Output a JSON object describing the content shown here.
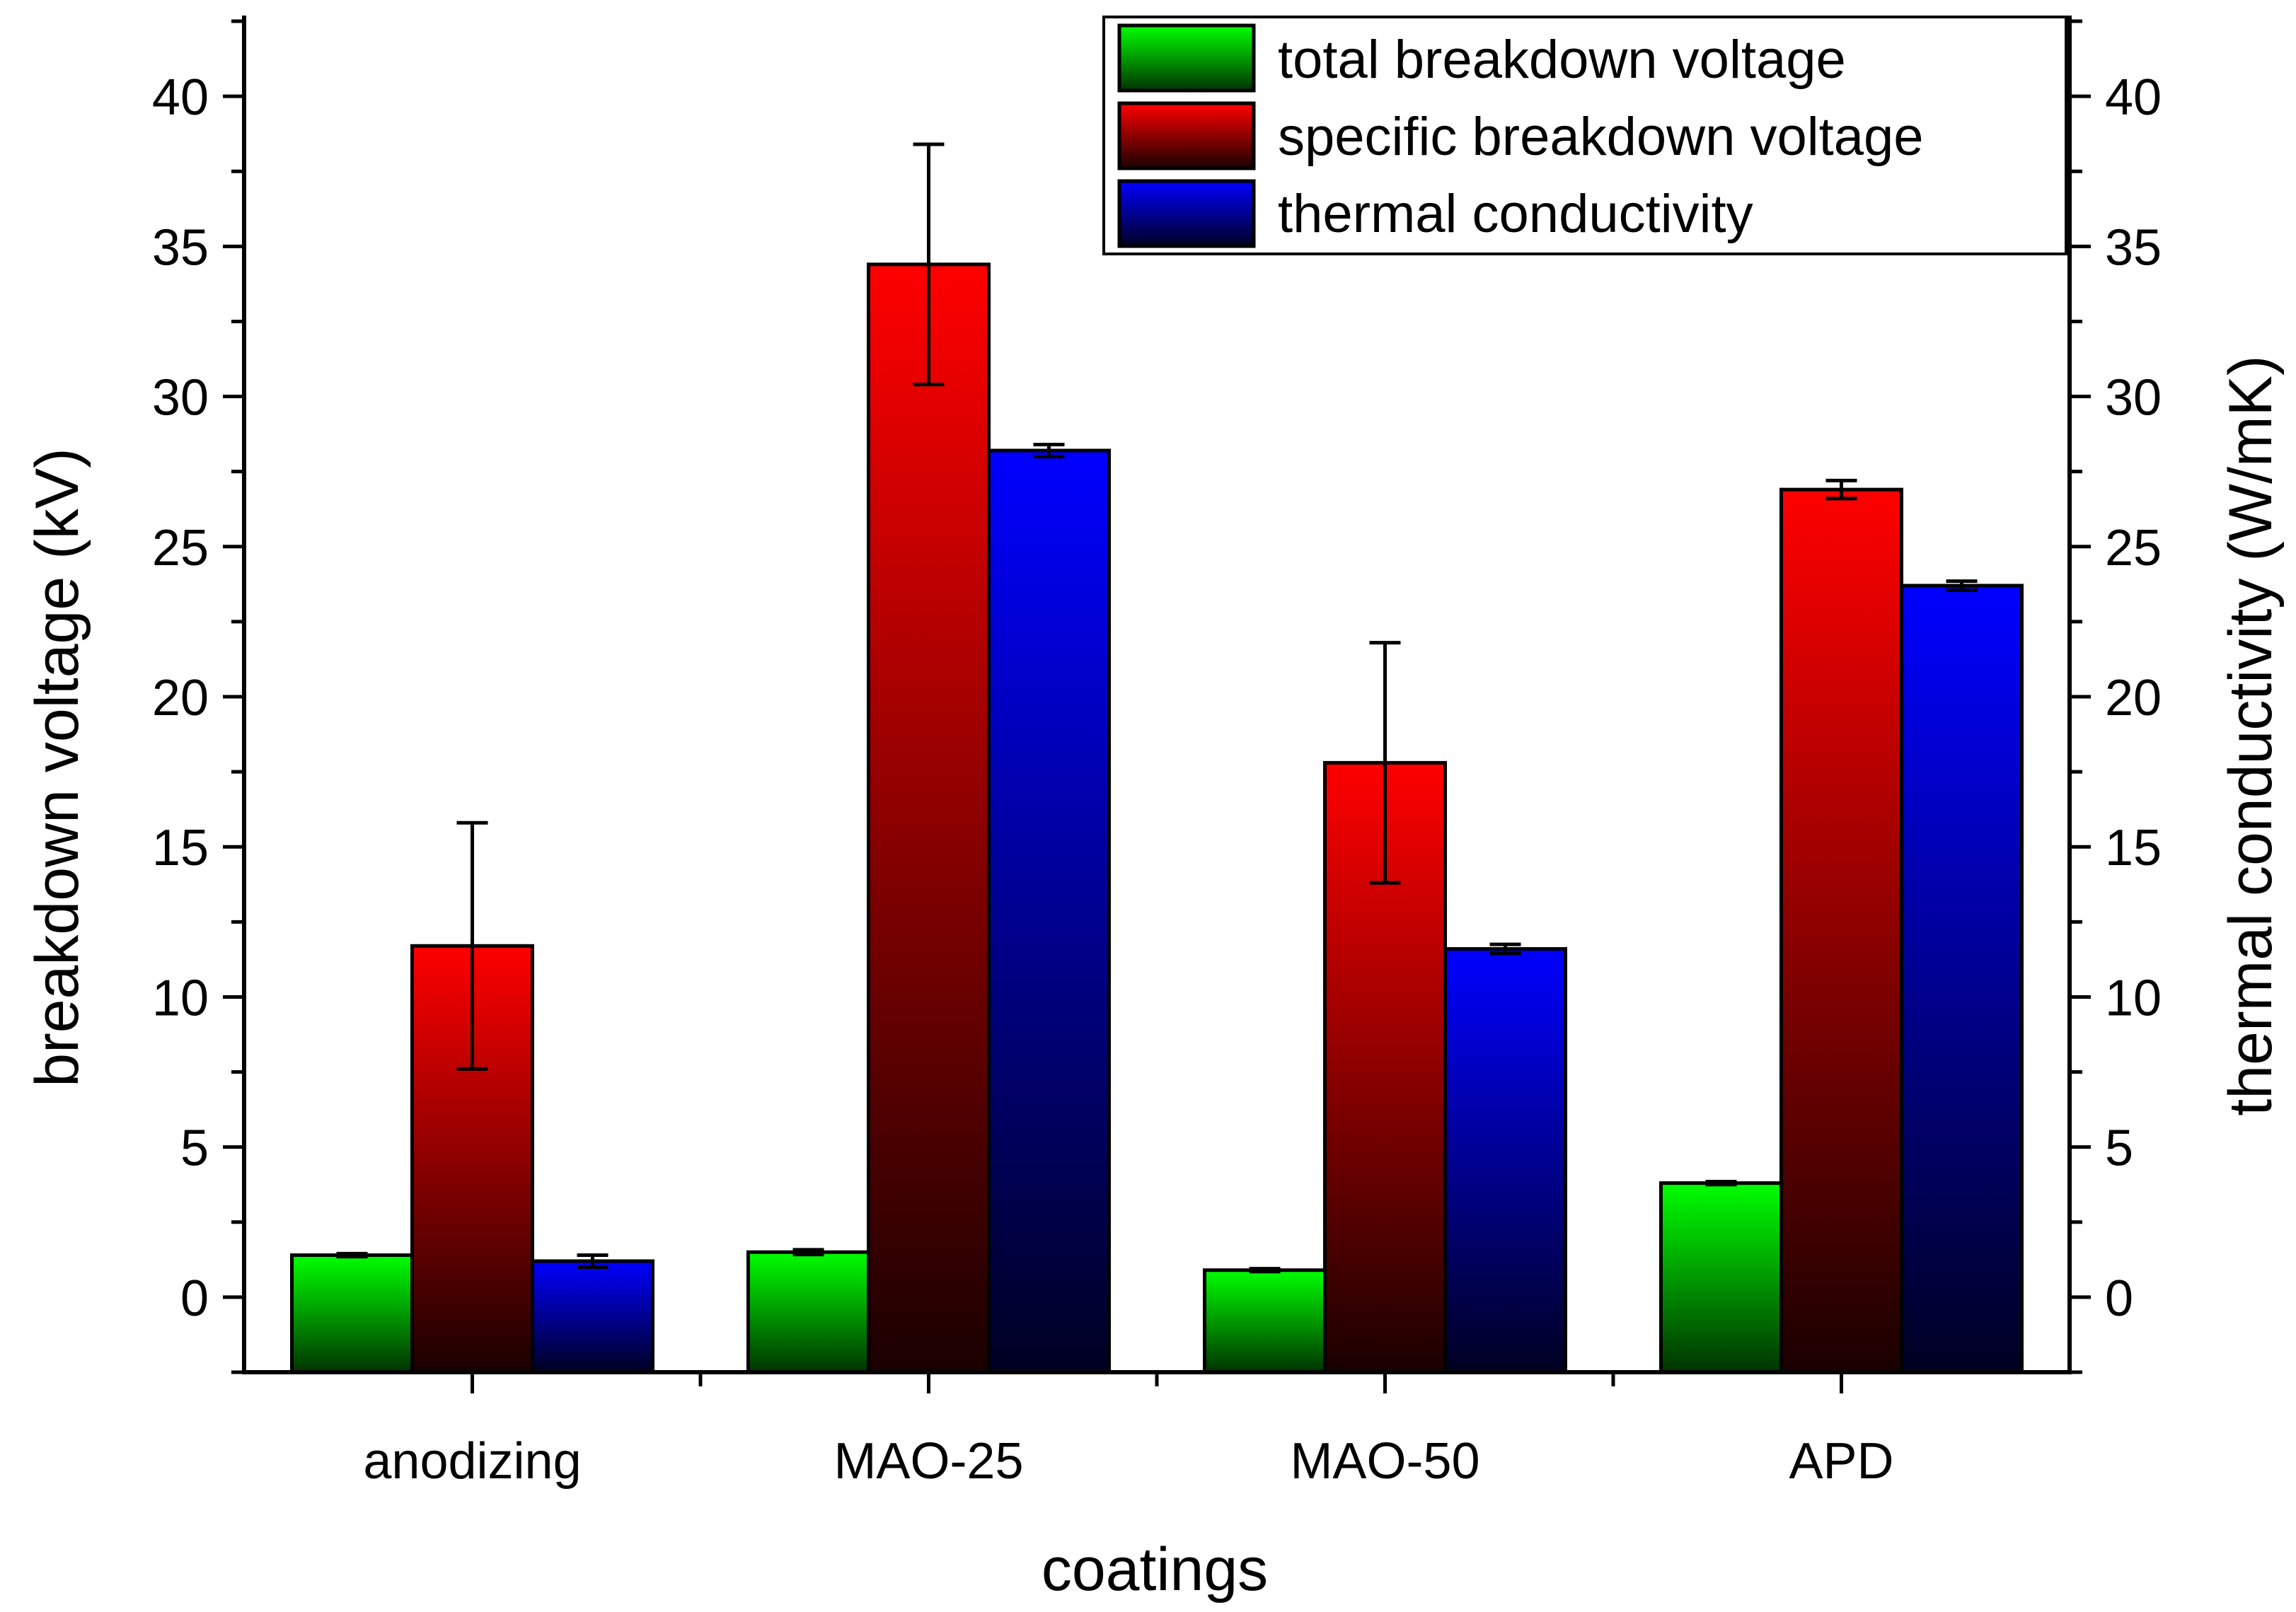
{
  "chart_data": {
    "type": "bar",
    "xlabel": "coatings",
    "ylabel": "breakdown voltage (kV)",
    "y2label": "thermal conductivity (W/mK)",
    "categories": [
      "anodizing",
      "MAO-25",
      "MAO-50",
      "APD"
    ],
    "ylim": [
      -2.5,
      42.5
    ],
    "y2lim": [
      -2.5,
      42.5
    ],
    "yticks": [
      0,
      5,
      10,
      15,
      20,
      25,
      30,
      35,
      40
    ],
    "y2ticks": [
      0,
      5,
      10,
      15,
      20,
      25,
      30,
      35,
      40
    ],
    "grid": false,
    "legend_position": "top-right",
    "series": [
      {
        "name": "total breakdown voltage",
        "axis": "left",
        "color_top": "#00ff00",
        "color_bottom": "#003300",
        "values": [
          1.4,
          1.5,
          0.9,
          3.8
        ],
        "errors": [
          0.05,
          0.08,
          0.05,
          0.05
        ]
      },
      {
        "name": "specific breakdown voltage",
        "axis": "left",
        "color_top": "#ff0000",
        "color_bottom": "#1a0000",
        "values": [
          11.7,
          34.4,
          17.8,
          26.9
        ],
        "errors": [
          4.1,
          4.0,
          4.0,
          0.3
        ]
      },
      {
        "name": "thermal conductivity",
        "axis": "right",
        "color_top": "#0000ff",
        "color_bottom": "#000022",
        "values": [
          1.2,
          28.2,
          11.6,
          23.7
        ],
        "errors": [
          0.2,
          0.2,
          0.15,
          0.15
        ]
      }
    ]
  }
}
